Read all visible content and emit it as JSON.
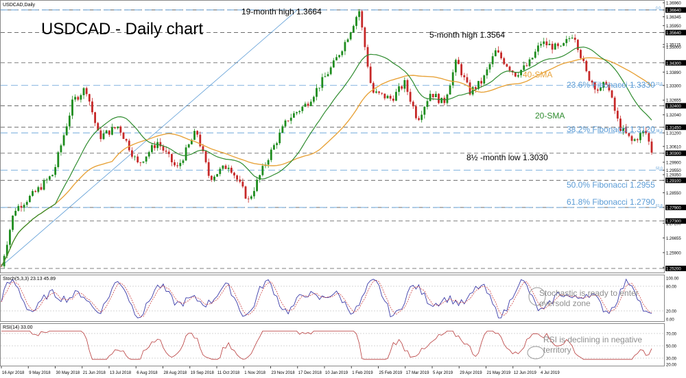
{
  "header": {
    "symbol": "USDCAD,Daily",
    "title": "USDCAD - Daily chart"
  },
  "chart_data": [
    {
      "type": "candlestick",
      "name": "price",
      "ylim": [
        1.252,
        1.369
      ],
      "y_ticks": [
        1.3696,
        1.3664,
        1.3634,
        1.3595,
        1.3564,
        1.3511,
        1.35,
        1.343,
        1.3389,
        1.333,
        1.3265,
        1.324,
        1.32,
        1.3145,
        1.312,
        1.306,
        1.303,
        1.299,
        1.2955,
        1.2935,
        1.291,
        1.2855,
        1.279,
        1.273,
        1.272,
        1.2655,
        1.259,
        1.2525,
        1.252
      ],
      "y_tick_labels": [
        "1.36960",
        "1.36640",
        "1.36345",
        "1.35950",
        "1.35640",
        "1.35115",
        "1.35000",
        "1.34300",
        "1.33890",
        "1.33300",
        "1.32655",
        "1.32400",
        "1.32040",
        "1.31450",
        "1.31200",
        "1.30610",
        "1.30300",
        "1.29900",
        "1.29550",
        "1.29350",
        "1.29100",
        "1.28550",
        "1.27900",
        "1.27300",
        "1.27200",
        "1.26655",
        "1.25900",
        "1.25250",
        "1.25200"
      ],
      "highlighted_levels": [
        {
          "value": 1.3664,
          "label": "1.36640",
          "kind": "support-resistance"
        },
        {
          "value": 1.3564,
          "label": "1.35640",
          "kind": "support-resistance"
        },
        {
          "value": 1.343,
          "label": "1.34300",
          "kind": "support-resistance"
        },
        {
          "value": 1.324,
          "label": "1.32400",
          "kind": "support-resistance"
        },
        {
          "value": 1.3145,
          "label": "1.31450",
          "kind": "support-resistance"
        },
        {
          "value": 1.303,
          "label": "1.30300",
          "kind": "support-resistance"
        },
        {
          "value": 1.291,
          "label": "1.29100",
          "kind": "support-resistance"
        },
        {
          "value": 1.279,
          "label": "1.27900",
          "kind": "support-resistance"
        },
        {
          "value": 1.273,
          "label": "1.27300",
          "kind": "support-resistance"
        },
        {
          "value": 1.252,
          "label": "1.25200",
          "kind": "support-resistance"
        }
      ],
      "fibonacci": [
        {
          "level": "0.0",
          "value": 1.3664,
          "label": ""
        },
        {
          "level": "23.6",
          "value": 1.333,
          "label": "23.6% Fibonacci 1.3330"
        },
        {
          "level": "38.2",
          "value": 1.312,
          "label": "38.2% Fibonacci 1.3120"
        },
        {
          "level": "50.0",
          "value": 1.2955,
          "label": "50.0% Fibonacci 1.2955"
        },
        {
          "level": "61.8",
          "value": 1.279,
          "label": "61.8% Fibonacci 1.2790"
        }
      ],
      "annotations": [
        {
          "text": "19-month high 1.3664",
          "date_index": 0.44,
          "value": 1.3664
        },
        {
          "text": "5-month high 1.3564",
          "date_index": 0.71,
          "value": 1.3564
        },
        {
          "text": "8½ -month low 1.3030",
          "date_index": 0.97,
          "value": 1.303
        },
        {
          "text": "40-SMA",
          "value": 1.335
        },
        {
          "text": "20-SMA",
          "value": 1.32
        }
      ],
      "series": [
        {
          "name": "20-SMA",
          "color": "#2e8b2e"
        },
        {
          "name": "40-SMA",
          "color": "#e8a33a"
        }
      ],
      "price_path": [
        [
          0,
          1.253
        ],
        [
          0.02,
          1.278
        ],
        [
          0.05,
          1.285
        ],
        [
          0.08,
          1.294
        ],
        [
          0.11,
          1.326
        ],
        [
          0.13,
          1.332
        ],
        [
          0.15,
          1.31
        ],
        [
          0.18,
          1.315
        ],
        [
          0.21,
          1.298
        ],
        [
          0.24,
          1.308
        ],
        [
          0.27,
          1.296
        ],
        [
          0.3,
          1.313
        ],
        [
          0.32,
          1.292
        ],
        [
          0.35,
          1.298
        ],
        [
          0.38,
          1.282
        ],
        [
          0.41,
          1.301
        ],
        [
          0.44,
          1.318
        ],
        [
          0.47,
          1.325
        ],
        [
          0.51,
          1.342
        ],
        [
          0.53,
          1.353
        ],
        [
          0.55,
          1.3664
        ],
        [
          0.57,
          1.33
        ],
        [
          0.6,
          1.327
        ],
        [
          0.62,
          1.334
        ],
        [
          0.64,
          1.318
        ],
        [
          0.66,
          1.33
        ],
        [
          0.68,
          1.325
        ],
        [
          0.7,
          1.344
        ],
        [
          0.72,
          1.33
        ],
        [
          0.74,
          1.335
        ],
        [
          0.76,
          1.348
        ],
        [
          0.79,
          1.338
        ],
        [
          0.81,
          1.342
        ],
        [
          0.83,
          1.352
        ],
        [
          0.86,
          1.349
        ],
        [
          0.88,
          1.3564
        ],
        [
          0.9,
          1.338
        ],
        [
          0.92,
          1.33
        ],
        [
          0.93,
          1.335
        ],
        [
          0.95,
          1.315
        ],
        [
          0.97,
          1.308
        ],
        [
          0.99,
          1.313
        ],
        [
          1.0,
          1.304
        ]
      ]
    },
    {
      "type": "line",
      "name": "stochastic",
      "header": "Stoch(5,3,3) 23.13 45.89",
      "ylim": [
        0,
        100
      ],
      "y_tick_labels": [
        "100.00",
        "80.00",
        "20.00",
        "0.00"
      ],
      "y_ticks": [
        100,
        80,
        20,
        0
      ],
      "note": "Stochastic is ready to enter oversold zone"
    },
    {
      "type": "line",
      "name": "rsi",
      "header": "RSI(14) 33.00",
      "ylim": [
        20,
        80
      ],
      "y_tick_labels": [
        "70.00",
        "50.00",
        "30.00",
        "20.00"
      ],
      "y_ticks": [
        70,
        50,
        30,
        20
      ],
      "note": "RSI is declining in negative territory"
    }
  ],
  "x_axis": {
    "labels": [
      "16 Apr 2018",
      "9 May 2018",
      "30 May 2018",
      "21 Jun 2018",
      "13 Jul 2018",
      "6 Aug 2018",
      "28 Aug 2018",
      "19 Sep 2018",
      "11 Oct 2018",
      "1 Nov 2018",
      "23 Nov 2018",
      "17 Dec 2018",
      "10 Jan 2019",
      "1 Feb 2019",
      "25 Feb 2019",
      "17 Mar 2019",
      "5 Apr 2019",
      "29 Apr 2019",
      "21 May 2019",
      "12 Jun 2019",
      "4 Jul 2019"
    ]
  },
  "colors": {
    "up": "#1e8c1e",
    "down": "#c62828",
    "fib": "#5a9bd5",
    "stoch_main": "#3a3aa8",
    "stoch_signal": "#c62828",
    "rsi": "#b73a3a",
    "gray_note": "#8e8e8e"
  }
}
